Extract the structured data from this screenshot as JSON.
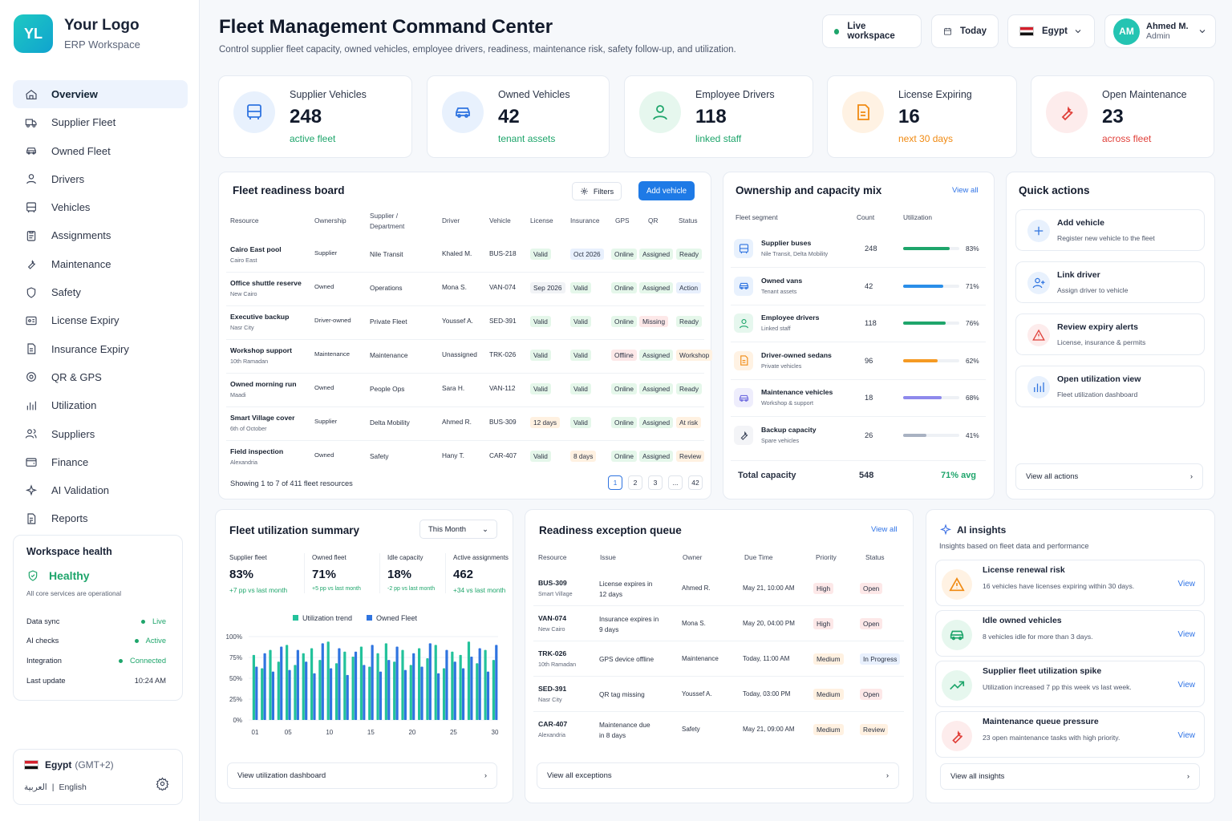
{
  "brand": {
    "logo": "YL",
    "name": "Your Logo",
    "sub": "ERP Workspace"
  },
  "nav": [
    {
      "label": "Overview",
      "icon": "home-icon"
    },
    {
      "label": "Supplier Fleet",
      "icon": "truck-icon"
    },
    {
      "label": "Owned Fleet",
      "icon": "car-icon"
    },
    {
      "label": "Drivers",
      "icon": "user-icon"
    },
    {
      "label": "Vehicles",
      "icon": "bus-icon"
    },
    {
      "label": "Assignments",
      "icon": "clipboard-icon"
    },
    {
      "label": "Maintenance",
      "icon": "wrench-icon"
    },
    {
      "label": "Safety",
      "icon": "shield-icon"
    },
    {
      "label": "License Expiry",
      "icon": "id-card-icon"
    },
    {
      "label": "Insurance Expiry",
      "icon": "document-icon"
    },
    {
      "label": "QR & GPS",
      "icon": "target-icon"
    },
    {
      "label": "Utilization",
      "icon": "bar-chart-icon"
    },
    {
      "label": "Suppliers",
      "icon": "users-icon"
    },
    {
      "label": "Finance",
      "icon": "wallet-icon"
    },
    {
      "label": "AI Validation",
      "icon": "sparkle-icon"
    },
    {
      "label": "Reports",
      "icon": "report-icon"
    }
  ],
  "health": {
    "title": "Workspace health",
    "status": "Healthy",
    "sub": "All core services are operational",
    "rows": [
      {
        "label": "Data sync",
        "value": "Live"
      },
      {
        "label": "AI checks",
        "value": "Active"
      },
      {
        "label": "Integration",
        "value": "Connected"
      },
      {
        "label": "Last update",
        "value": "10:24 AM"
      }
    ]
  },
  "locale": {
    "country": "Egypt",
    "tz": "(GMT+2)",
    "lang_ar": "العربية",
    "sep": "|",
    "lang_en": "English"
  },
  "header": {
    "title": "Fleet Management Command Center",
    "sub": "Control supplier fleet capacity, owned vehicles, employee drivers, readiness, maintenance risk, safety follow-up, and utilization.",
    "live": "Live workspace",
    "today": "Today",
    "country": "Egypt",
    "user": "Ahmed M.",
    "role": "Admin",
    "avatar": "AM"
  },
  "kpis": [
    {
      "label": "Supplier Vehicles",
      "value": "248",
      "sub": "active fleet",
      "color": "#1ea56b"
    },
    {
      "label": "Owned Vehicles",
      "value": "42",
      "sub": "tenant assets",
      "color": "#1ea56b"
    },
    {
      "label": "Employee Drivers",
      "value": "118",
      "sub": "linked staff",
      "color": "#1ea56b"
    },
    {
      "label": "License Expiring",
      "value": "16",
      "sub": "next 30 days",
      "color": "#f08a12"
    },
    {
      "label": "Open Maintenance",
      "value": "23",
      "sub": "across fleet",
      "color": "#e0403a"
    }
  ],
  "readiness": {
    "title": "Fleet readiness board",
    "filters": "Filters",
    "add": "Add vehicle",
    "headers": [
      "Resource",
      "Ownership",
      "Supplier /",
      "Department",
      "Driver",
      "Vehicle",
      "License",
      "Insurance",
      "GPS",
      "QR",
      "Status"
    ],
    "rows": [
      {
        "name": "Cairo East pool",
        "loc": "Cairo East",
        "own": "Supplier",
        "dept": "Nile Transit",
        "driver": "Khaled M.",
        "veh": "BUS-218",
        "lic": "Valid",
        "ins": "Oct 2026",
        "gps": "Online",
        "qr": "Assigned",
        "status": "Ready"
      },
      {
        "name": "Office shuttle reserve",
        "loc": "New Cairo",
        "own": "Owned",
        "dept": "Operations",
        "driver": "Mona S.",
        "veh": "VAN-074",
        "lic": "Sep 2026",
        "ins": "Valid",
        "gps": "Online",
        "qr": "Assigned",
        "status": "Action"
      },
      {
        "name": "Executive backup",
        "loc": "Nasr City",
        "own": "Driver-owned",
        "dept": "Private Fleet",
        "driver": "Youssef A.",
        "veh": "SED-391",
        "lic": "Valid",
        "ins": "Valid",
        "gps": "Online",
        "qr": "Missing",
        "status": "Ready"
      },
      {
        "name": "Workshop support",
        "loc": "10th Ramadan",
        "own": "Maintenance",
        "dept": "Maintenance",
        "driver": "Unassigned",
        "veh": "TRK-026",
        "lic": "Valid",
        "ins": "Valid",
        "gps": "Offline",
        "qr": "Assigned",
        "status": "Workshop"
      },
      {
        "name": "Owned morning run",
        "loc": "Maadi",
        "own": "Owned",
        "dept": "People Ops",
        "driver": "Sara H.",
        "veh": "VAN-112",
        "lic": "Valid",
        "ins": "Valid",
        "gps": "Online",
        "qr": "Assigned",
        "status": "Ready"
      },
      {
        "name": "Smart Village cover",
        "loc": "6th of October",
        "own": "Supplier",
        "dept": "Delta Mobility",
        "driver": "Ahmed R.",
        "veh": "BUS-309",
        "lic": "12 days",
        "ins": "Valid",
        "gps": "Online",
        "qr": "Assigned",
        "status": "At risk"
      },
      {
        "name": "Field inspection",
        "loc": "Alexandria",
        "own": "Owned",
        "dept": "Safety",
        "driver": "Hany T.",
        "veh": "CAR-407",
        "lic": "Valid",
        "ins": "8 days",
        "gps": "Online",
        "qr": "Assigned",
        "status": "Review"
      }
    ],
    "showing": "Showing 1 to 7 of 411 fleet resources",
    "pages": [
      "1",
      "2",
      "3",
      "...",
      "42"
    ]
  },
  "mix": {
    "title": "Ownership and capacity mix",
    "viewall": "View all",
    "headers": [
      "Fleet segment",
      "Count",
      "Utilization"
    ],
    "rows": [
      {
        "name": "Supplier buses",
        "sub": "Nile Transit, Delta Mobility",
        "count": "248",
        "pct": "83%",
        "p": 0.83,
        "color": "#1ea56b"
      },
      {
        "name": "Owned vans",
        "sub": "Tenant assets",
        "count": "42",
        "pct": "71%",
        "p": 0.71,
        "color": "#2a8ee8"
      },
      {
        "name": "Employee drivers",
        "sub": "Linked staff",
        "count": "118",
        "pct": "76%",
        "p": 0.76,
        "color": "#1ea56b"
      },
      {
        "name": "Driver-owned sedans",
        "sub": "Private vehicles",
        "count": "96",
        "pct": "62%",
        "p": 0.62,
        "color": "#f59a23"
      },
      {
        "name": "Maintenance vehicles",
        "sub": "Workshop & support",
        "count": "18",
        "pct": "68%",
        "p": 0.68,
        "color": "#8e89ec"
      },
      {
        "name": "Backup capacity",
        "sub": "Spare vehicles",
        "count": "26",
        "pct": "41%",
        "p": 0.41,
        "color": "#a9b2c2"
      }
    ],
    "total_label": "Total capacity",
    "total": "548",
    "avg": "71% avg"
  },
  "quick": {
    "title": "Quick actions",
    "items": [
      {
        "title": "Add vehicle",
        "sub": "Register new vehicle to the fleet"
      },
      {
        "title": "Link driver",
        "sub": "Assign driver to vehicle"
      },
      {
        "title": "Review expiry alerts",
        "sub": "License, insurance & permits"
      },
      {
        "title": "Open utilization view",
        "sub": "Fleet utilization dashboard"
      }
    ],
    "viewall": "View all actions"
  },
  "util": {
    "title": "Fleet utilization summary",
    "period": "This Month",
    "stats": [
      {
        "label": "Supplier fleet",
        "value": "83%",
        "delta": "+7 pp vs last month"
      },
      {
        "label": "Owned fleet",
        "value": "71%",
        "delta": "+5 pp vs last month"
      },
      {
        "label": "Idle capacity",
        "value": "18%",
        "delta": "-2 pp vs last month"
      },
      {
        "label": "Active assignments",
        "value": "462",
        "delta": "+34 vs last month"
      }
    ],
    "link": "View utilization dashboard"
  },
  "chart_data": {
    "type": "bar",
    "legend": [
      "Utilization trend",
      "Owned Fleet"
    ],
    "colors": [
      "#23c29b",
      "#2f74e0"
    ],
    "yticks": [
      "100%",
      "75%",
      "50%",
      "25%",
      "0%"
    ],
    "xticks": [
      "01",
      "05",
      "10",
      "15",
      "20",
      "25",
      "30"
    ],
    "ylim": [
      0,
      100
    ],
    "series": [
      {
        "name": "Utilization trend",
        "values": [
          78,
          62,
          84,
          70,
          90,
          66,
          80,
          86,
          72,
          94,
          68,
          82,
          76,
          88,
          64,
          80,
          92,
          70,
          84,
          66,
          86,
          74,
          90,
          62,
          82,
          78,
          94,
          68,
          84,
          72
        ]
      },
      {
        "name": "Owned Fleet",
        "values": [
          64,
          80,
          58,
          88,
          60,
          84,
          70,
          56,
          92,
          62,
          86,
          54,
          82,
          66,
          90,
          58,
          72,
          88,
          60,
          80,
          64,
          92,
          56,
          84,
          70,
          62,
          76,
          86,
          58,
          90
        ]
      }
    ]
  },
  "queue": {
    "title": "Readiness exception queue",
    "viewall": "View all",
    "headers": [
      "Resource",
      "Issue",
      "Owner",
      "Due Time",
      "Priority",
      "Status"
    ],
    "rows": [
      {
        "res": "BUS-309",
        "loc": "Smart Village",
        "issue1": "License expires in",
        "issue2": "12 days",
        "owner": "Ahmed R.",
        "due": "May 21, 10:00 AM",
        "prio": "High",
        "status": "Open"
      },
      {
        "res": "VAN-074",
        "loc": "New Cairo",
        "issue1": "Insurance expires in",
        "issue2": "9 days",
        "owner": "Mona S.",
        "due": "May 20, 04:00 PM",
        "prio": "High",
        "status": "Open"
      },
      {
        "res": "TRK-026",
        "loc": "10th Ramadan",
        "issue1": "GPS device offline",
        "issue2": "",
        "owner": "Maintenance",
        "due": "Today, 11:00 AM",
        "prio": "Medium",
        "status": "In Progress"
      },
      {
        "res": "SED-391",
        "loc": "Nasr City",
        "issue1": "QR tag missing",
        "issue2": "",
        "owner": "Youssef A.",
        "due": "Today, 03:00 PM",
        "prio": "Medium",
        "status": "Open"
      },
      {
        "res": "CAR-407",
        "loc": "Alexandria",
        "issue1": "Maintenance due",
        "issue2": "in 8 days",
        "owner": "Safety",
        "due": "May 21, 09:00 AM",
        "prio": "Medium",
        "status": "Review"
      }
    ],
    "link": "View all exceptions"
  },
  "insights": {
    "title": "AI insights",
    "sub": "Insights based on fleet data and performance",
    "view": "View",
    "items": [
      {
        "title": "License renewal risk",
        "sub": "16 vehicles have licenses expiring within 30 days."
      },
      {
        "title": "Idle owned vehicles",
        "sub": "8 vehicles idle for more than 3 days."
      },
      {
        "title": "Supplier fleet utilization spike",
        "sub": "Utilization increased 7 pp this week vs last week."
      },
      {
        "title": "Maintenance queue pressure",
        "sub": "23 open maintenance tasks with high priority."
      }
    ],
    "link": "View all insights"
  }
}
